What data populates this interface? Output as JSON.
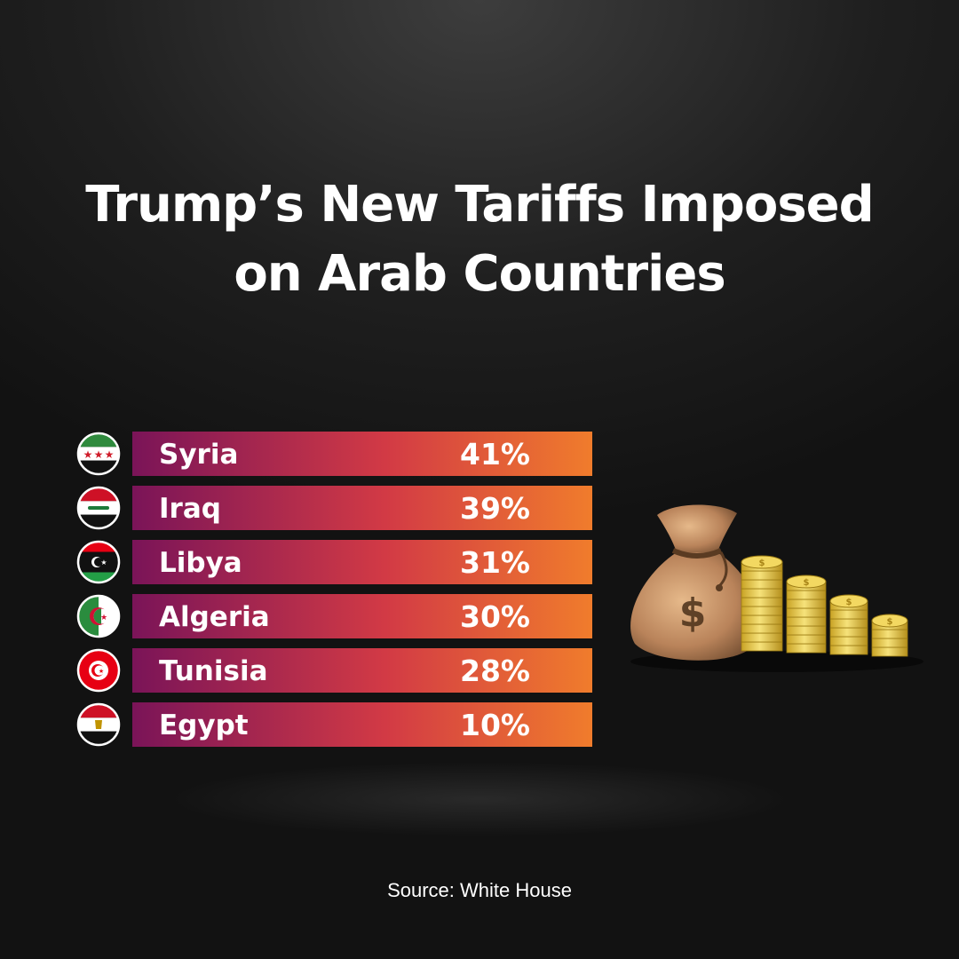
{
  "chart_data": {
    "type": "bar",
    "title": [
      "Trump’s New Tariffs Imposed",
      "on Arab Countries"
    ],
    "categories": [
      "Syria",
      "Iraq",
      "Libya",
      "Algeria",
      "Tunisia",
      "Egypt"
    ],
    "values": [
      41,
      39,
      31,
      30,
      28,
      10
    ],
    "value_labels": [
      "41%",
      "39%",
      "31%",
      "30%",
      "28%",
      "10%"
    ],
    "flag_icons": [
      "syria-flag-icon",
      "iraq-flag-icon",
      "libya-flag-icon",
      "algeria-flag-icon",
      "tunisia-flag-icon",
      "egypt-flag-icon"
    ],
    "bar_gradient": [
      "#7a1458",
      "#d23a45",
      "#f07c2c"
    ],
    "legend": "none",
    "grid": false
  },
  "source": "Source: White House",
  "illustration_icons": [
    "money-bag-icon",
    "coin-stacks-icon"
  ]
}
